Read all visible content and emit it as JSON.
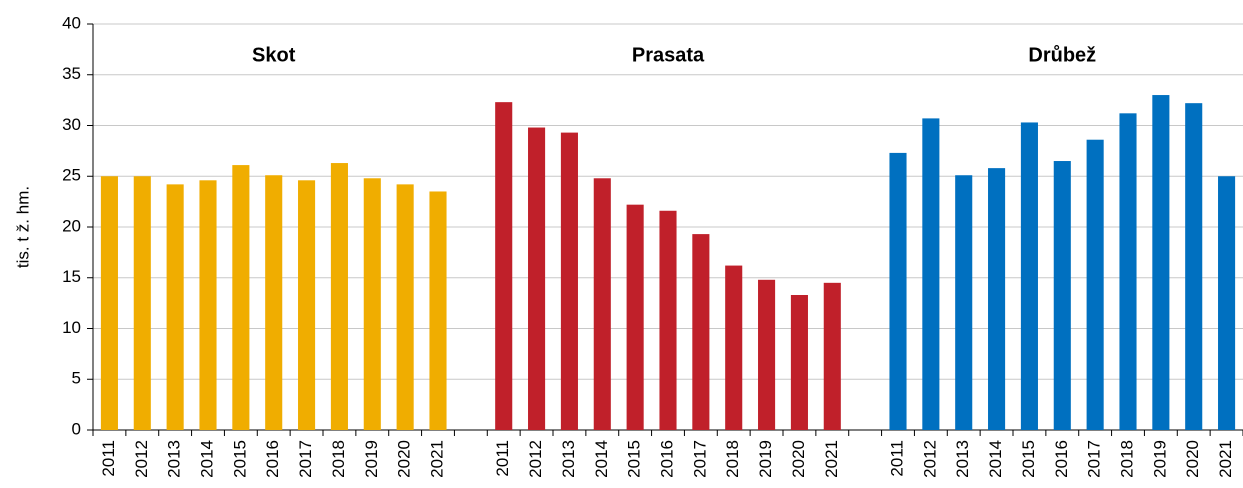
{
  "chart_data": {
    "type": "bar",
    "y_label": "tis. t ž. hm.",
    "categories": [
      "2011",
      "2012",
      "2013",
      "2014",
      "2015",
      "2016",
      "2017",
      "2018",
      "2019",
      "2020",
      "2021",
      null,
      "2011",
      "2012",
      "2013",
      "2014",
      "2015",
      "2016",
      "2017",
      "2018",
      "2019",
      "2020",
      "2021",
      null,
      "2011",
      "2012",
      "2013",
      "2014",
      "2015",
      "2016",
      "2017",
      "2018",
      "2019",
      "2020",
      "2021"
    ],
    "series": [
      {
        "name": "Skot",
        "color": "#f0ad00",
        "values": [
          25.0,
          25.0,
          24.2,
          24.6,
          26.1,
          25.1,
          24.6,
          26.3,
          24.8,
          24.2,
          23.5,
          null,
          null,
          null,
          null,
          null,
          null,
          null,
          null,
          null,
          null,
          null,
          null,
          null,
          null,
          null,
          null,
          null,
          null,
          null,
          null,
          null,
          null,
          null,
          null
        ]
      },
      {
        "name": "Prasata",
        "color": "#c0202a",
        "values": [
          null,
          null,
          null,
          null,
          null,
          null,
          null,
          null,
          null,
          null,
          null,
          null,
          32.3,
          29.8,
          29.3,
          24.8,
          22.2,
          21.6,
          19.3,
          16.2,
          14.8,
          13.3,
          14.5,
          null,
          null,
          null,
          null,
          null,
          null,
          null,
          null,
          null,
          null,
          null,
          null
        ]
      },
      {
        "name": "Drůbež",
        "color": "#0070c0",
        "values": [
          null,
          null,
          null,
          null,
          null,
          null,
          null,
          null,
          null,
          null,
          null,
          null,
          null,
          null,
          null,
          null,
          null,
          null,
          null,
          null,
          null,
          null,
          null,
          null,
          27.3,
          30.7,
          25.1,
          25.8,
          30.3,
          26.5,
          28.6,
          31.2,
          33.0,
          32.2,
          25.0
        ]
      }
    ],
    "ylim": [
      0,
      40
    ],
    "yticks": [
      0,
      5,
      10,
      15,
      20,
      25,
      30,
      35,
      40
    ],
    "grid": true
  }
}
